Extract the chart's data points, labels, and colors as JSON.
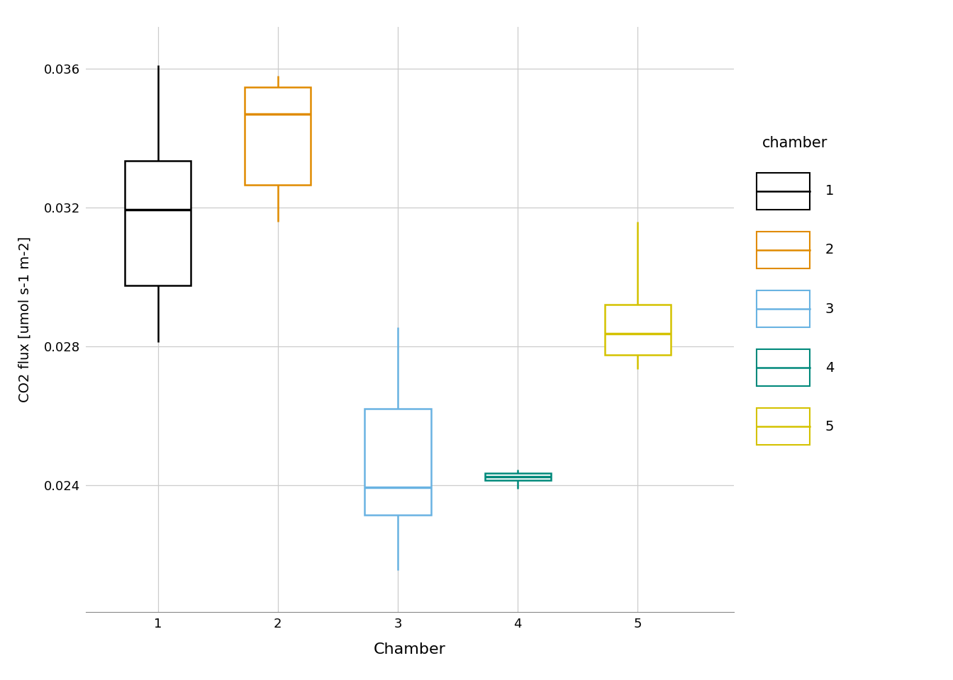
{
  "chambers": [
    1,
    2,
    3,
    4,
    5
  ],
  "colors": {
    "1": "#000000",
    "2": "#E08B00",
    "3": "#69B3E2",
    "4": "#00897B",
    "5": "#D4C200"
  },
  "boxplot_stats": {
    "1": {
      "whislo": 0.02813,
      "q1": 0.02975,
      "med": 0.03195,
      "q3": 0.03335,
      "whishi": 0.0361
    },
    "2": {
      "whislo": 0.0316,
      "q1": 0.03265,
      "med": 0.0347,
      "q3": 0.03548,
      "whishi": 0.0358
    },
    "3": {
      "whislo": 0.02155,
      "q1": 0.02315,
      "med": 0.02395,
      "q3": 0.0262,
      "whishi": 0.02855
    },
    "4": {
      "whislo": 0.0239,
      "q1": 0.02415,
      "med": 0.02425,
      "q3": 0.02435,
      "whishi": 0.02445
    },
    "5": {
      "whislo": 0.02735,
      "q1": 0.02775,
      "med": 0.02838,
      "q3": 0.0292,
      "whishi": 0.0316
    }
  },
  "x_positions": [
    1,
    2,
    3,
    4,
    5
  ],
  "box_width": 0.55,
  "xlabel": "Chamber",
  "ylabel": "CO2 flux [umol s-1 m-2]",
  "ylim": [
    0.02035,
    0.0372
  ],
  "yticks": [
    0.024,
    0.028,
    0.032,
    0.036
  ],
  "ytick_labels": [
    "0.024",
    "0.028",
    "0.032",
    "0.036"
  ],
  "legend_title": "chamber",
  "legend_labels": [
    "1",
    "2",
    "3",
    "4",
    "5"
  ],
  "background_color": "#FFFFFF",
  "panel_background": "#FFFFFF",
  "grid_color": "#CCCCCC",
  "linewidth": 1.8,
  "median_linewidth": 2.5
}
